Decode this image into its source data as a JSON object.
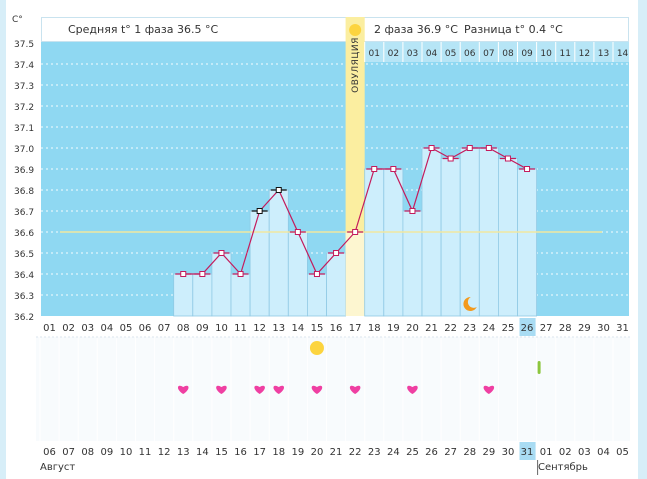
{
  "chart_data": {
    "type": "line",
    "y_unit_label": "C°",
    "ylim": [
      36.2,
      37.5
    ],
    "y_ticks": [
      "37.5",
      "37.4",
      "37.3",
      "37.2",
      "37.1",
      "37.0",
      "36.9",
      "36.8",
      "36.7",
      "36.6",
      "36.5",
      "36.4",
      "36.3",
      "36.2"
    ],
    "header": {
      "phase1": "Средняя t° 1 фаза 36.5 °C",
      "phase2": "2 фаза 36.9 °C",
      "difference": "Разница t° 0.4 °C"
    },
    "ovulation_label": "ОВУЛЯЦИЯ",
    "ovulation_day": "17",
    "coverline": 36.6,
    "cycle_days": [
      "01",
      "02",
      "03",
      "04",
      "05",
      "06",
      "07",
      "08",
      "09",
      "10",
      "11",
      "12",
      "13",
      "14",
      "15",
      "16",
      "17",
      "18",
      "19",
      "20",
      "21",
      "22",
      "23",
      "24",
      "25",
      "26",
      "27",
      "28",
      "29",
      "30",
      "31"
    ],
    "current_day": "26",
    "luteal_days": [
      "01",
      "02",
      "03",
      "04",
      "05",
      "06",
      "07",
      "08",
      "09",
      "10",
      "11",
      "12",
      "13",
      "14"
    ],
    "temperatures": [
      null,
      null,
      null,
      null,
      null,
      null,
      null,
      36.4,
      36.4,
      36.5,
      36.4,
      36.7,
      36.8,
      36.6,
      36.4,
      36.5,
      36.6,
      36.9,
      36.9,
      36.7,
      37.0,
      36.95,
      37.0,
      37.0,
      36.95,
      36.9,
      null,
      null,
      null,
      null,
      null
    ],
    "marked_points": [
      "12",
      "13"
    ],
    "heart_days": [
      "08",
      "10",
      "12",
      "13",
      "15",
      "17",
      "20",
      "24"
    ],
    "sun_day": "15",
    "moon_day": "23",
    "tick_day": "27",
    "dates": [
      {
        "d": "06",
        "red": true
      },
      {
        "d": "07",
        "red": true
      },
      {
        "d": "08",
        "red": false
      },
      {
        "d": "09",
        "red": false
      },
      {
        "d": "10",
        "red": false
      },
      {
        "d": "11",
        "red": false
      },
      {
        "d": "12",
        "red": false
      },
      {
        "d": "13",
        "red": true
      },
      {
        "d": "14",
        "red": true
      },
      {
        "d": "15",
        "red": false
      },
      {
        "d": "16",
        "red": false
      },
      {
        "d": "17",
        "red": false
      },
      {
        "d": "18",
        "red": false
      },
      {
        "d": "19",
        "red": false
      },
      {
        "d": "20",
        "red": true
      },
      {
        "d": "21",
        "red": true
      },
      {
        "d": "22",
        "red": false
      },
      {
        "d": "23",
        "red": false
      },
      {
        "d": "24",
        "red": false
      },
      {
        "d": "25",
        "red": false
      },
      {
        "d": "26",
        "red": false
      },
      {
        "d": "27",
        "red": true
      },
      {
        "d": "28",
        "red": true
      },
      {
        "d": "29",
        "red": false
      },
      {
        "d": "30",
        "red": false
      },
      {
        "d": "31",
        "red": false
      },
      {
        "d": "01",
        "red": false
      },
      {
        "d": "02",
        "red": false
      },
      {
        "d": "03",
        "red": true
      },
      {
        "d": "04",
        "red": true
      },
      {
        "d": "05",
        "red": false
      }
    ],
    "month_left": "Август",
    "month_right": "Сентябрь",
    "colors": {
      "plot_bg": "#8fd8f2",
      "bar_fill": "#cdeefc",
      "bar_stroke": "#8fc9e4",
      "line": "#c41b5c",
      "ovulation": "#fbeea0",
      "coverline": "#f1e7a0",
      "heart": "#ef3fa2",
      "sun": "#fcd43f",
      "moon": "#f39a1d",
      "tick": "#8cc63f",
      "highlight": "#a9dcf3",
      "red_date": "#cc1f3a"
    }
  }
}
